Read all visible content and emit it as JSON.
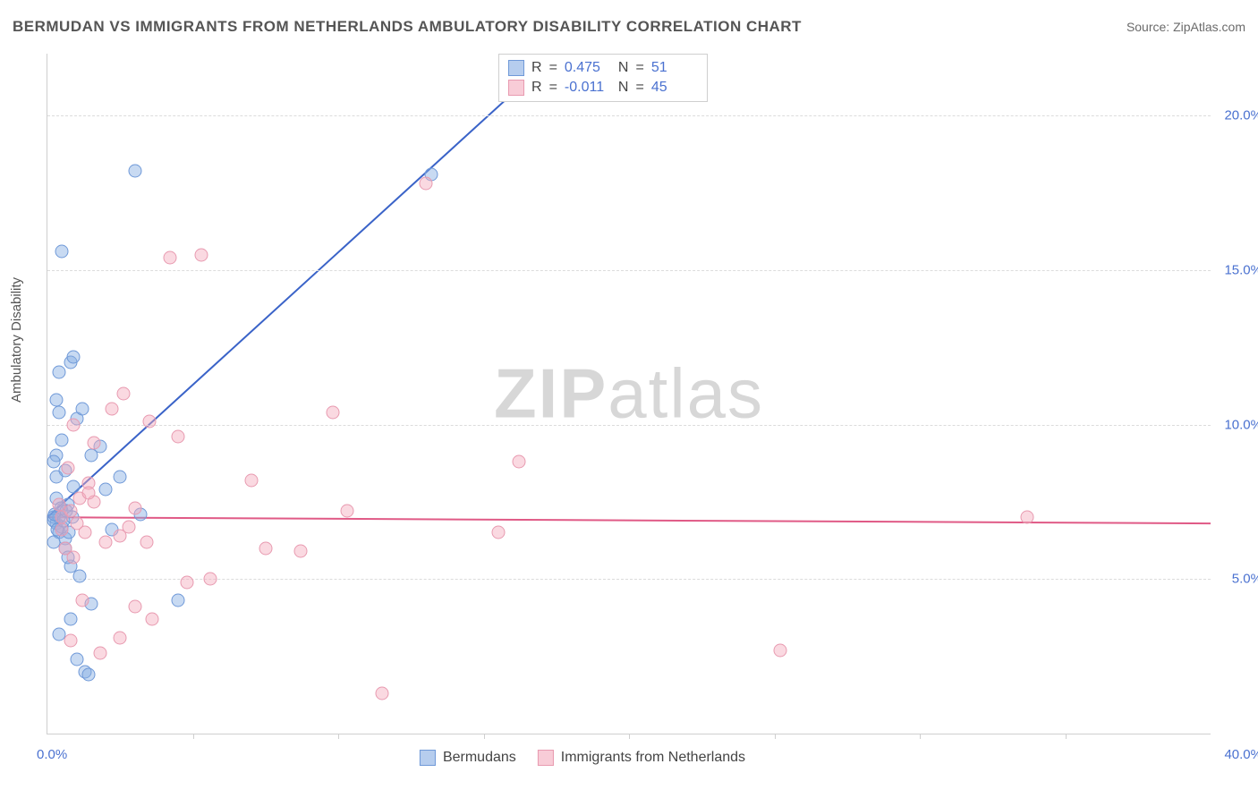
{
  "title": "BERMUDAN VS IMMIGRANTS FROM NETHERLANDS AMBULATORY DISABILITY CORRELATION CHART",
  "source_prefix": "Source: ",
  "source_name": "ZipAtlas.com",
  "ylabel": "Ambulatory Disability",
  "watermark": {
    "bold": "ZIP",
    "rest": "atlas"
  },
  "chart": {
    "type": "scatter",
    "background_color": "#ffffff",
    "grid_color": "#dcdcdc",
    "axis_color": "#cfcfcf",
    "tick_label_color": "#4a71d0",
    "marker_radius": 7.5,
    "xlim": [
      0,
      40
    ],
    "ylim": [
      0,
      22
    ],
    "x_ticks": [
      5,
      10,
      15,
      20,
      25,
      30,
      35
    ],
    "y_ticks": [
      5,
      10,
      15,
      20
    ],
    "x_min_label": "0.0%",
    "x_max_label": "40.0%",
    "y_tick_labels": [
      "5.0%",
      "10.0%",
      "15.0%",
      "20.0%"
    ],
    "series": [
      {
        "key": "bermudans",
        "label": "Bermudans",
        "fill_color": "#86ace3",
        "border_color": "#6f99d8",
        "fill_opacity": 0.45,
        "R": "0.475",
        "N": "51",
        "trend": {
          "x1": 0,
          "y1": 7.0,
          "x2": 17.5,
          "y2": 22.0,
          "color": "#3a63c8",
          "width": 2
        },
        "points": [
          [
            0.2,
            7.0
          ],
          [
            0.3,
            6.8
          ],
          [
            0.4,
            6.5
          ],
          [
            0.5,
            7.2
          ],
          [
            0.6,
            6.3
          ],
          [
            0.7,
            7.4
          ],
          [
            0.3,
            9.0
          ],
          [
            0.5,
            9.5
          ],
          [
            1.0,
            10.2
          ],
          [
            1.2,
            10.5
          ],
          [
            0.4,
            11.7
          ],
          [
            0.9,
            8.0
          ],
          [
            1.5,
            9.0
          ],
          [
            1.8,
            9.3
          ],
          [
            2.0,
            7.9
          ],
          [
            0.8,
            5.4
          ],
          [
            1.1,
            5.1
          ],
          [
            1.5,
            4.2
          ],
          [
            0.4,
            3.2
          ],
          [
            1.0,
            2.4
          ],
          [
            1.3,
            2.0
          ],
          [
            1.4,
            1.9
          ],
          [
            0.5,
            15.6
          ],
          [
            3.0,
            18.2
          ],
          [
            13.2,
            18.1
          ],
          [
            2.5,
            8.3
          ],
          [
            3.2,
            7.1
          ],
          [
            2.2,
            6.6
          ],
          [
            0.2,
            6.2
          ],
          [
            0.3,
            7.6
          ],
          [
            0.6,
            8.5
          ],
          [
            0.8,
            12.0
          ],
          [
            0.9,
            12.2
          ],
          [
            0.3,
            10.8
          ],
          [
            0.4,
            10.4
          ],
          [
            0.2,
            8.8
          ],
          [
            0.3,
            8.3
          ],
          [
            0.4,
            7.0
          ],
          [
            0.5,
            6.7
          ],
          [
            0.6,
            6.0
          ],
          [
            0.7,
            5.7
          ],
          [
            4.5,
            4.3
          ],
          [
            0.8,
            3.7
          ],
          [
            0.2,
            6.9
          ],
          [
            0.25,
            7.1
          ],
          [
            0.35,
            6.6
          ],
          [
            0.45,
            7.3
          ],
          [
            0.55,
            6.9
          ],
          [
            0.65,
            7.2
          ],
          [
            0.75,
            6.5
          ],
          [
            0.85,
            7.0
          ]
        ]
      },
      {
        "key": "netherlands",
        "label": "Immigrants from Netherlands",
        "fill_color": "#f4aabd",
        "border_color": "#e89ab0",
        "fill_opacity": 0.45,
        "R": "-0.011",
        "N": "45",
        "trend": {
          "x1": 0,
          "y1": 7.0,
          "x2": 40,
          "y2": 6.8,
          "color": "#e05a86",
          "width": 2
        },
        "points": [
          [
            0.5,
            7.0
          ],
          [
            0.8,
            7.2
          ],
          [
            1.0,
            6.8
          ],
          [
            1.3,
            6.5
          ],
          [
            1.6,
            7.5
          ],
          [
            2.0,
            6.2
          ],
          [
            2.5,
            6.4
          ],
          [
            3.0,
            7.3
          ],
          [
            2.2,
            10.5
          ],
          [
            2.6,
            11.0
          ],
          [
            4.2,
            15.4
          ],
          [
            5.3,
            15.5
          ],
          [
            13.0,
            17.8
          ],
          [
            3.5,
            10.1
          ],
          [
            7.0,
            8.2
          ],
          [
            9.8,
            10.4
          ],
          [
            16.2,
            8.8
          ],
          [
            10.3,
            7.2
          ],
          [
            7.5,
            6.0
          ],
          [
            8.7,
            5.9
          ],
          [
            15.5,
            6.5
          ],
          [
            33.7,
            7.0
          ],
          [
            25.2,
            2.7
          ],
          [
            11.5,
            1.3
          ],
          [
            4.8,
            4.9
          ],
          [
            5.6,
            5.0
          ],
          [
            3.0,
            4.1
          ],
          [
            3.6,
            3.7
          ],
          [
            2.5,
            3.1
          ],
          [
            1.8,
            2.6
          ],
          [
            1.2,
            4.3
          ],
          [
            0.8,
            3.0
          ],
          [
            0.9,
            10.0
          ],
          [
            1.6,
            9.4
          ],
          [
            0.7,
            8.6
          ],
          [
            1.4,
            8.1
          ],
          [
            2.8,
            6.7
          ],
          [
            3.4,
            6.2
          ],
          [
            0.6,
            6.0
          ],
          [
            0.9,
            5.7
          ],
          [
            1.1,
            7.6
          ],
          [
            1.4,
            7.8
          ],
          [
            4.5,
            9.6
          ],
          [
            0.4,
            7.4
          ],
          [
            0.5,
            6.6
          ]
        ]
      }
    ],
    "stats_labels": {
      "R": "R",
      "N": "N",
      "eq": "="
    },
    "legend_position": "bottom"
  }
}
